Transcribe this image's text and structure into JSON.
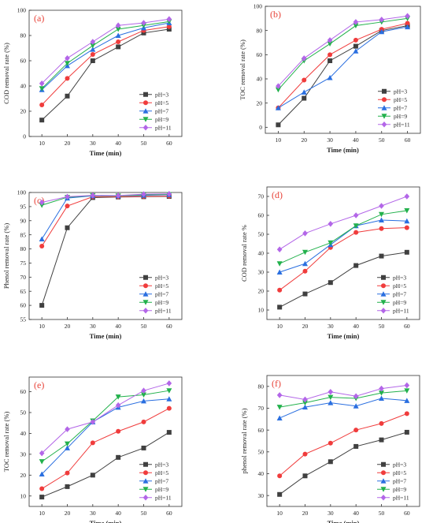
{
  "colors": {
    "pH=3": "#404040",
    "pH=5": "#f03c3c",
    "pH=7": "#2a6fe0",
    "pH=9": "#22b14c",
    "pH=11": "#b366e8",
    "panel_label": "#e8443a"
  },
  "chart_data": [
    {
      "type": "line",
      "panel": "(a)",
      "xlabel": "Time (min)",
      "ylabel": "COD removal rate (%)",
      "x": [
        10,
        20,
        30,
        40,
        50,
        60
      ],
      "xlim": [
        5,
        65
      ],
      "ylim": [
        0,
        100
      ],
      "yticks": [
        0,
        20,
        40,
        60,
        80,
        100
      ],
      "legend": "bottom-right",
      "series": [
        {
          "name": "pH=3",
          "marker": "square",
          "values": [
            13,
            32,
            60,
            71,
            82,
            85
          ]
        },
        {
          "name": "pH=5",
          "marker": "circle",
          "values": [
            25,
            46,
            65,
            75,
            84,
            87
          ]
        },
        {
          "name": "pH=7",
          "marker": "triangle",
          "values": [
            37,
            56,
            69,
            80,
            86,
            90
          ]
        },
        {
          "name": "pH=9",
          "marker": "tri-down",
          "values": [
            38,
            58,
            72,
            85,
            88,
            91
          ]
        },
        {
          "name": "pH=11",
          "marker": "diamond",
          "values": [
            42,
            62,
            75,
            88,
            90,
            93
          ]
        }
      ]
    },
    {
      "type": "line",
      "panel": "(b)",
      "xlabel": "Time (min)",
      "ylabel": "TOC removal rate (%)",
      "x": [
        10,
        20,
        30,
        40,
        50,
        60
      ],
      "xlim": [
        5,
        65
      ],
      "ylim": [
        -5,
        100
      ],
      "yticks": [
        0,
        20,
        40,
        60,
        80,
        100
      ],
      "legend": "bottom-right",
      "series": [
        {
          "name": "pH=3",
          "marker": "square",
          "values": [
            2,
            24,
            55,
            67,
            80,
            84
          ]
        },
        {
          "name": "pH=5",
          "marker": "circle",
          "values": [
            16,
            39,
            60,
            72,
            81,
            86
          ]
        },
        {
          "name": "pH=7",
          "marker": "triangle",
          "values": [
            16,
            29,
            41,
            63,
            79,
            83
          ]
        },
        {
          "name": "pH=9",
          "marker": "tri-down",
          "values": [
            31,
            55,
            69,
            84,
            87,
            90
          ]
        },
        {
          "name": "pH=11",
          "marker": "diamond",
          "values": [
            34,
            57,
            72,
            87,
            89,
            92
          ]
        }
      ]
    },
    {
      "type": "line",
      "panel": "(c)",
      "xlabel": "Time (min)",
      "ylabel": "Phenol removal rate (%)",
      "x": [
        10,
        20,
        30,
        40,
        50,
        60
      ],
      "xlim": [
        5,
        65
      ],
      "ylim": [
        55,
        100
      ],
      "yticks": [
        55,
        60,
        65,
        70,
        75,
        80,
        85,
        90,
        95,
        100
      ],
      "legend": "bottom-right",
      "series": [
        {
          "name": "pH=3",
          "marker": "square",
          "values": [
            60,
            87.5,
            98.2,
            98.4,
            98.5,
            98.6
          ]
        },
        {
          "name": "pH=5",
          "marker": "circle",
          "values": [
            81,
            95.2,
            98.5,
            98.5,
            98.6,
            98.7
          ]
        },
        {
          "name": "pH=7",
          "marker": "triangle",
          "values": [
            83.5,
            98.0,
            98.8,
            98.8,
            99.0,
            99.2
          ]
        },
        {
          "name": "pH=9",
          "marker": "tri-down",
          "values": [
            95.5,
            98.3,
            98.9,
            98.8,
            99.2,
            99.3
          ]
        },
        {
          "name": "pH=11",
          "marker": "diamond",
          "values": [
            96.5,
            98.5,
            99.0,
            98.9,
            99.4,
            99.5
          ]
        }
      ]
    },
    {
      "type": "line",
      "panel": "(d)",
      "xlabel": "Time  (min)",
      "ylabel": "COD removal rate %",
      "x": [
        10,
        20,
        30,
        40,
        50,
        60
      ],
      "xlim": [
        5,
        65
      ],
      "ylim": [
        5,
        75
      ],
      "yticks": [
        10,
        20,
        30,
        40,
        50,
        60,
        70
      ],
      "legend": "bottom-right",
      "series": [
        {
          "name": "pH=3",
          "marker": "square",
          "values": [
            11.5,
            18.5,
            24.5,
            33.5,
            38.5,
            40.5
          ]
        },
        {
          "name": "pH=5",
          "marker": "circle",
          "values": [
            20.5,
            30.5,
            43,
            51,
            53,
            53.5
          ]
        },
        {
          "name": "pH=7",
          "marker": "triangle",
          "values": [
            30,
            34.5,
            44.5,
            54.5,
            57.5,
            57
          ]
        },
        {
          "name": "pH=9",
          "marker": "tri-down",
          "values": [
            34.5,
            40.5,
            45.5,
            54.5,
            60.5,
            62.5
          ]
        },
        {
          "name": "pH=11",
          "marker": "diamond",
          "values": [
            42,
            50.5,
            55.5,
            60,
            65,
            70
          ]
        }
      ]
    },
    {
      "type": "line",
      "panel": "(e)",
      "xlabel": "Time  (min)",
      "ylabel": "TOC removal rate  (%)",
      "x": [
        10,
        20,
        30,
        40,
        50,
        60
      ],
      "xlim": [
        5,
        65
      ],
      "ylim": [
        5,
        67
      ],
      "yticks": [
        10,
        20,
        30,
        40,
        50,
        60
      ],
      "legend": "bottom-right",
      "series": [
        {
          "name": "pH=3",
          "marker": "square",
          "values": [
            9.5,
            14.5,
            20,
            28.5,
            33,
            40.5
          ]
        },
        {
          "name": "pH=5",
          "marker": "circle",
          "values": [
            13.5,
            21,
            35.5,
            41,
            45.5,
            52
          ]
        },
        {
          "name": "pH=7",
          "marker": "triangle",
          "values": [
            20.5,
            33,
            45.5,
            52.5,
            55.5,
            56.5
          ]
        },
        {
          "name": "pH=9",
          "marker": "tri-down",
          "values": [
            26.5,
            35,
            46,
            57.5,
            58.5,
            60.5
          ]
        },
        {
          "name": "pH=11",
          "marker": "diamond",
          "values": [
            30.5,
            42,
            45.5,
            53.5,
            60.5,
            64
          ]
        }
      ]
    },
    {
      "type": "line",
      "panel": "(f)",
      "xlabel": "Time  (min)",
      "ylabel": "phenol removal rate  (%)",
      "x": [
        10,
        20,
        30,
        40,
        50,
        60
      ],
      "xlim": [
        5,
        65
      ],
      "ylim": [
        25,
        85
      ],
      "yticks": [
        30,
        40,
        50,
        60,
        70,
        80
      ],
      "legend": "bottom-right",
      "series": [
        {
          "name": "pH=3",
          "marker": "square",
          "values": [
            30.5,
            39,
            45.5,
            52.5,
            55.5,
            59
          ]
        },
        {
          "name": "pH=5",
          "marker": "circle",
          "values": [
            39,
            49,
            54,
            60,
            63,
            67.5
          ]
        },
        {
          "name": "pH=7",
          "marker": "triangle",
          "values": [
            65.5,
            70.5,
            72.5,
            71,
            74.5,
            73.5
          ]
        },
        {
          "name": "pH=9",
          "marker": "tri-down",
          "values": [
            70.5,
            72.5,
            75,
            74.5,
            77,
            78
          ]
        },
        {
          "name": "pH=11",
          "marker": "diamond",
          "values": [
            76,
            74,
            77.5,
            75.5,
            79,
            80.5
          ]
        }
      ]
    }
  ]
}
